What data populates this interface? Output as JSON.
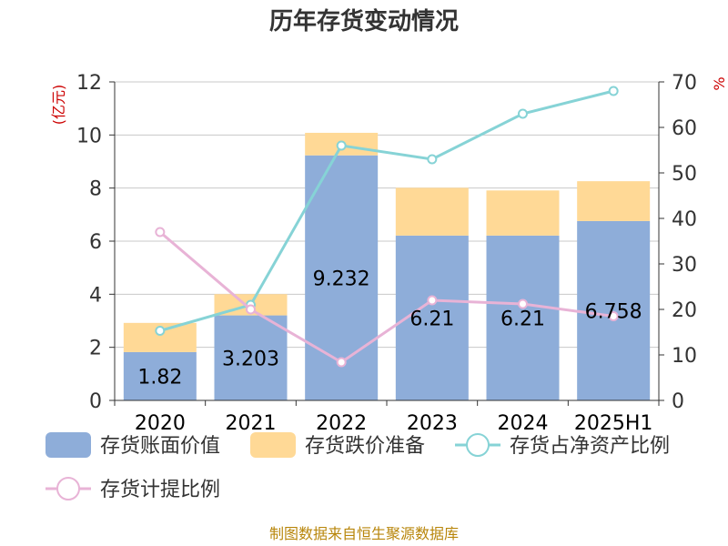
{
  "chart_data": {
    "type": "bar",
    "title": "历年存货变动情况",
    "categories": [
      "2020",
      "2021",
      "2022",
      "2023",
      "2024",
      "2025H1"
    ],
    "left_axis": {
      "unit": "(亿元)",
      "ylim": [
        0,
        12
      ],
      "ticks": [
        "0",
        "2",
        "4",
        "6",
        "8",
        "10",
        "12"
      ]
    },
    "right_axis": {
      "unit": "%",
      "ylim": [
        0,
        70
      ],
      "ticks": [
        "0",
        "10",
        "20",
        "30",
        "40",
        "50",
        "60",
        "70"
      ]
    },
    "grid": true,
    "legend_position": "bottom",
    "series": [
      {
        "name": "存货账面价值",
        "kind": "bar",
        "axis": "left",
        "color": "#8eadd9",
        "values": [
          1.82,
          3.203,
          9.232,
          6.21,
          6.21,
          6.758
        ],
        "labels": [
          "1.82",
          "3.203",
          "9.232",
          "6.21",
          "6.21",
          "6.758"
        ]
      },
      {
        "name": "存货跌价准备",
        "kind": "bar",
        "axis": "left",
        "color": "#ffd996",
        "values": [
          1.1,
          0.8,
          0.85,
          1.8,
          1.7,
          1.5
        ]
      },
      {
        "name": "存货占净资产比例",
        "kind": "line",
        "axis": "right",
        "color": "#86d3d6",
        "values": [
          15.3,
          21,
          56,
          53,
          63,
          68
        ]
      },
      {
        "name": "存货计提比例",
        "kind": "line",
        "axis": "right",
        "color": "#e8b3d6",
        "values": [
          37,
          20,
          8.4,
          22,
          21.2,
          18.5
        ]
      }
    ]
  },
  "source": "制图数据来自恒生聚源数据库"
}
